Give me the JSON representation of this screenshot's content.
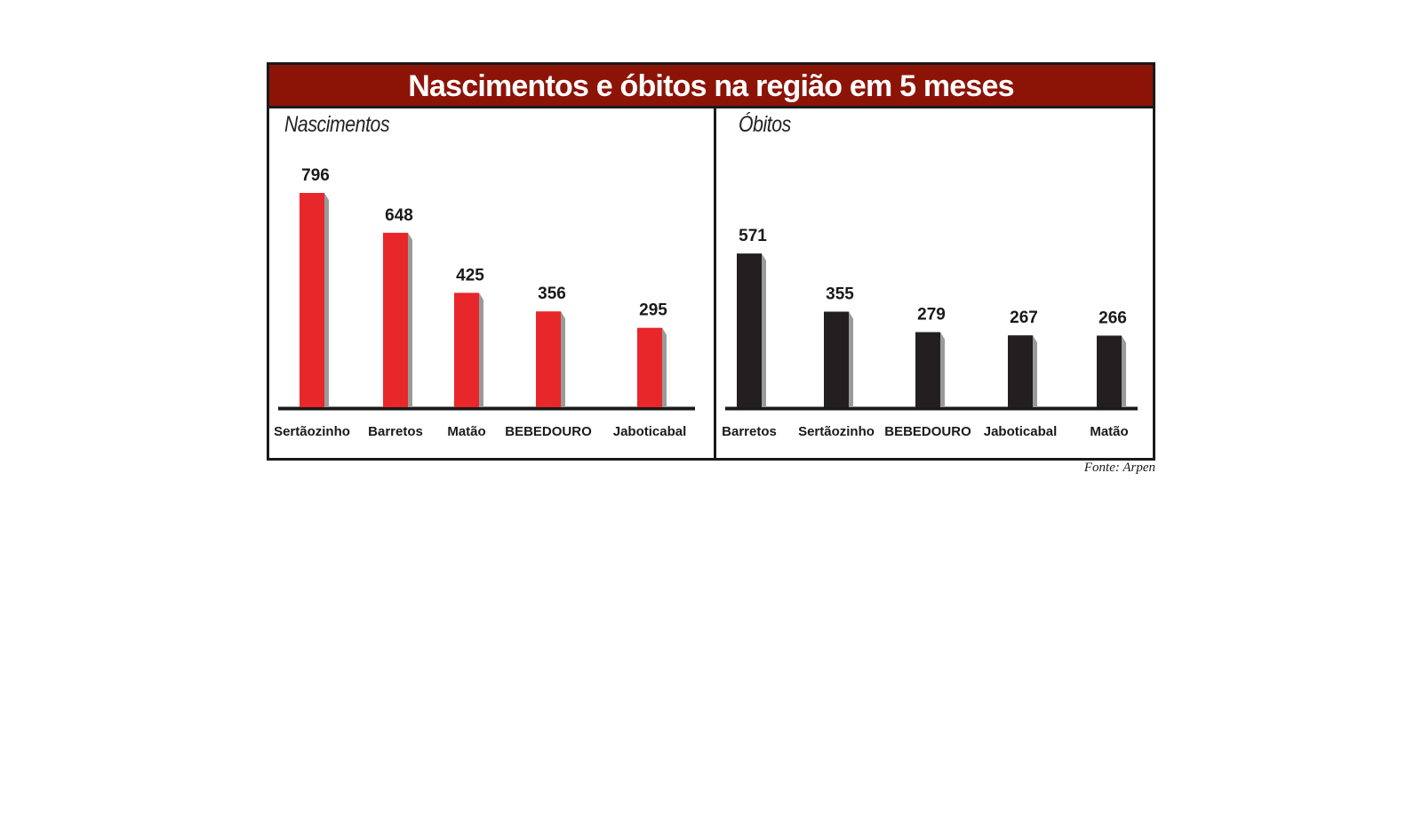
{
  "title": "Nascimentos e óbitos na região em 5 meses",
  "source": "Fonte: Arpen",
  "colors": {
    "title_bar": "#8c1407",
    "nascimentos_bar": "#e8272a",
    "obitos_bar": "#231f20",
    "shadow": "#9a9a9a"
  },
  "chart_data": [
    {
      "type": "bar",
      "title": "Nascimentos",
      "categories": [
        "Sertãozinho",
        "Barretos",
        "Matão",
        "BEBEDOURO",
        "Jaboticabal"
      ],
      "values": [
        796,
        648,
        425,
        356,
        295
      ],
      "data_labels": [
        "796",
        "648",
        "425",
        "356",
        "295"
      ],
      "xlabel": "",
      "ylabel": "",
      "ylim": [
        0,
        796
      ],
      "grid": false,
      "bar_color": "#e8272a"
    },
    {
      "type": "bar",
      "title": "Óbitos",
      "categories": [
        "Barretos",
        "Sertãozinho",
        "BEBEDOURO",
        "Jaboticabal",
        "Matão"
      ],
      "values": [
        571,
        355,
        279,
        267,
        266
      ],
      "data_labels": [
        "571",
        "355",
        "279",
        "267",
        "266"
      ],
      "xlabel": "",
      "ylabel": "",
      "ylim": [
        0,
        796
      ],
      "grid": false,
      "bar_color": "#231f20"
    }
  ]
}
